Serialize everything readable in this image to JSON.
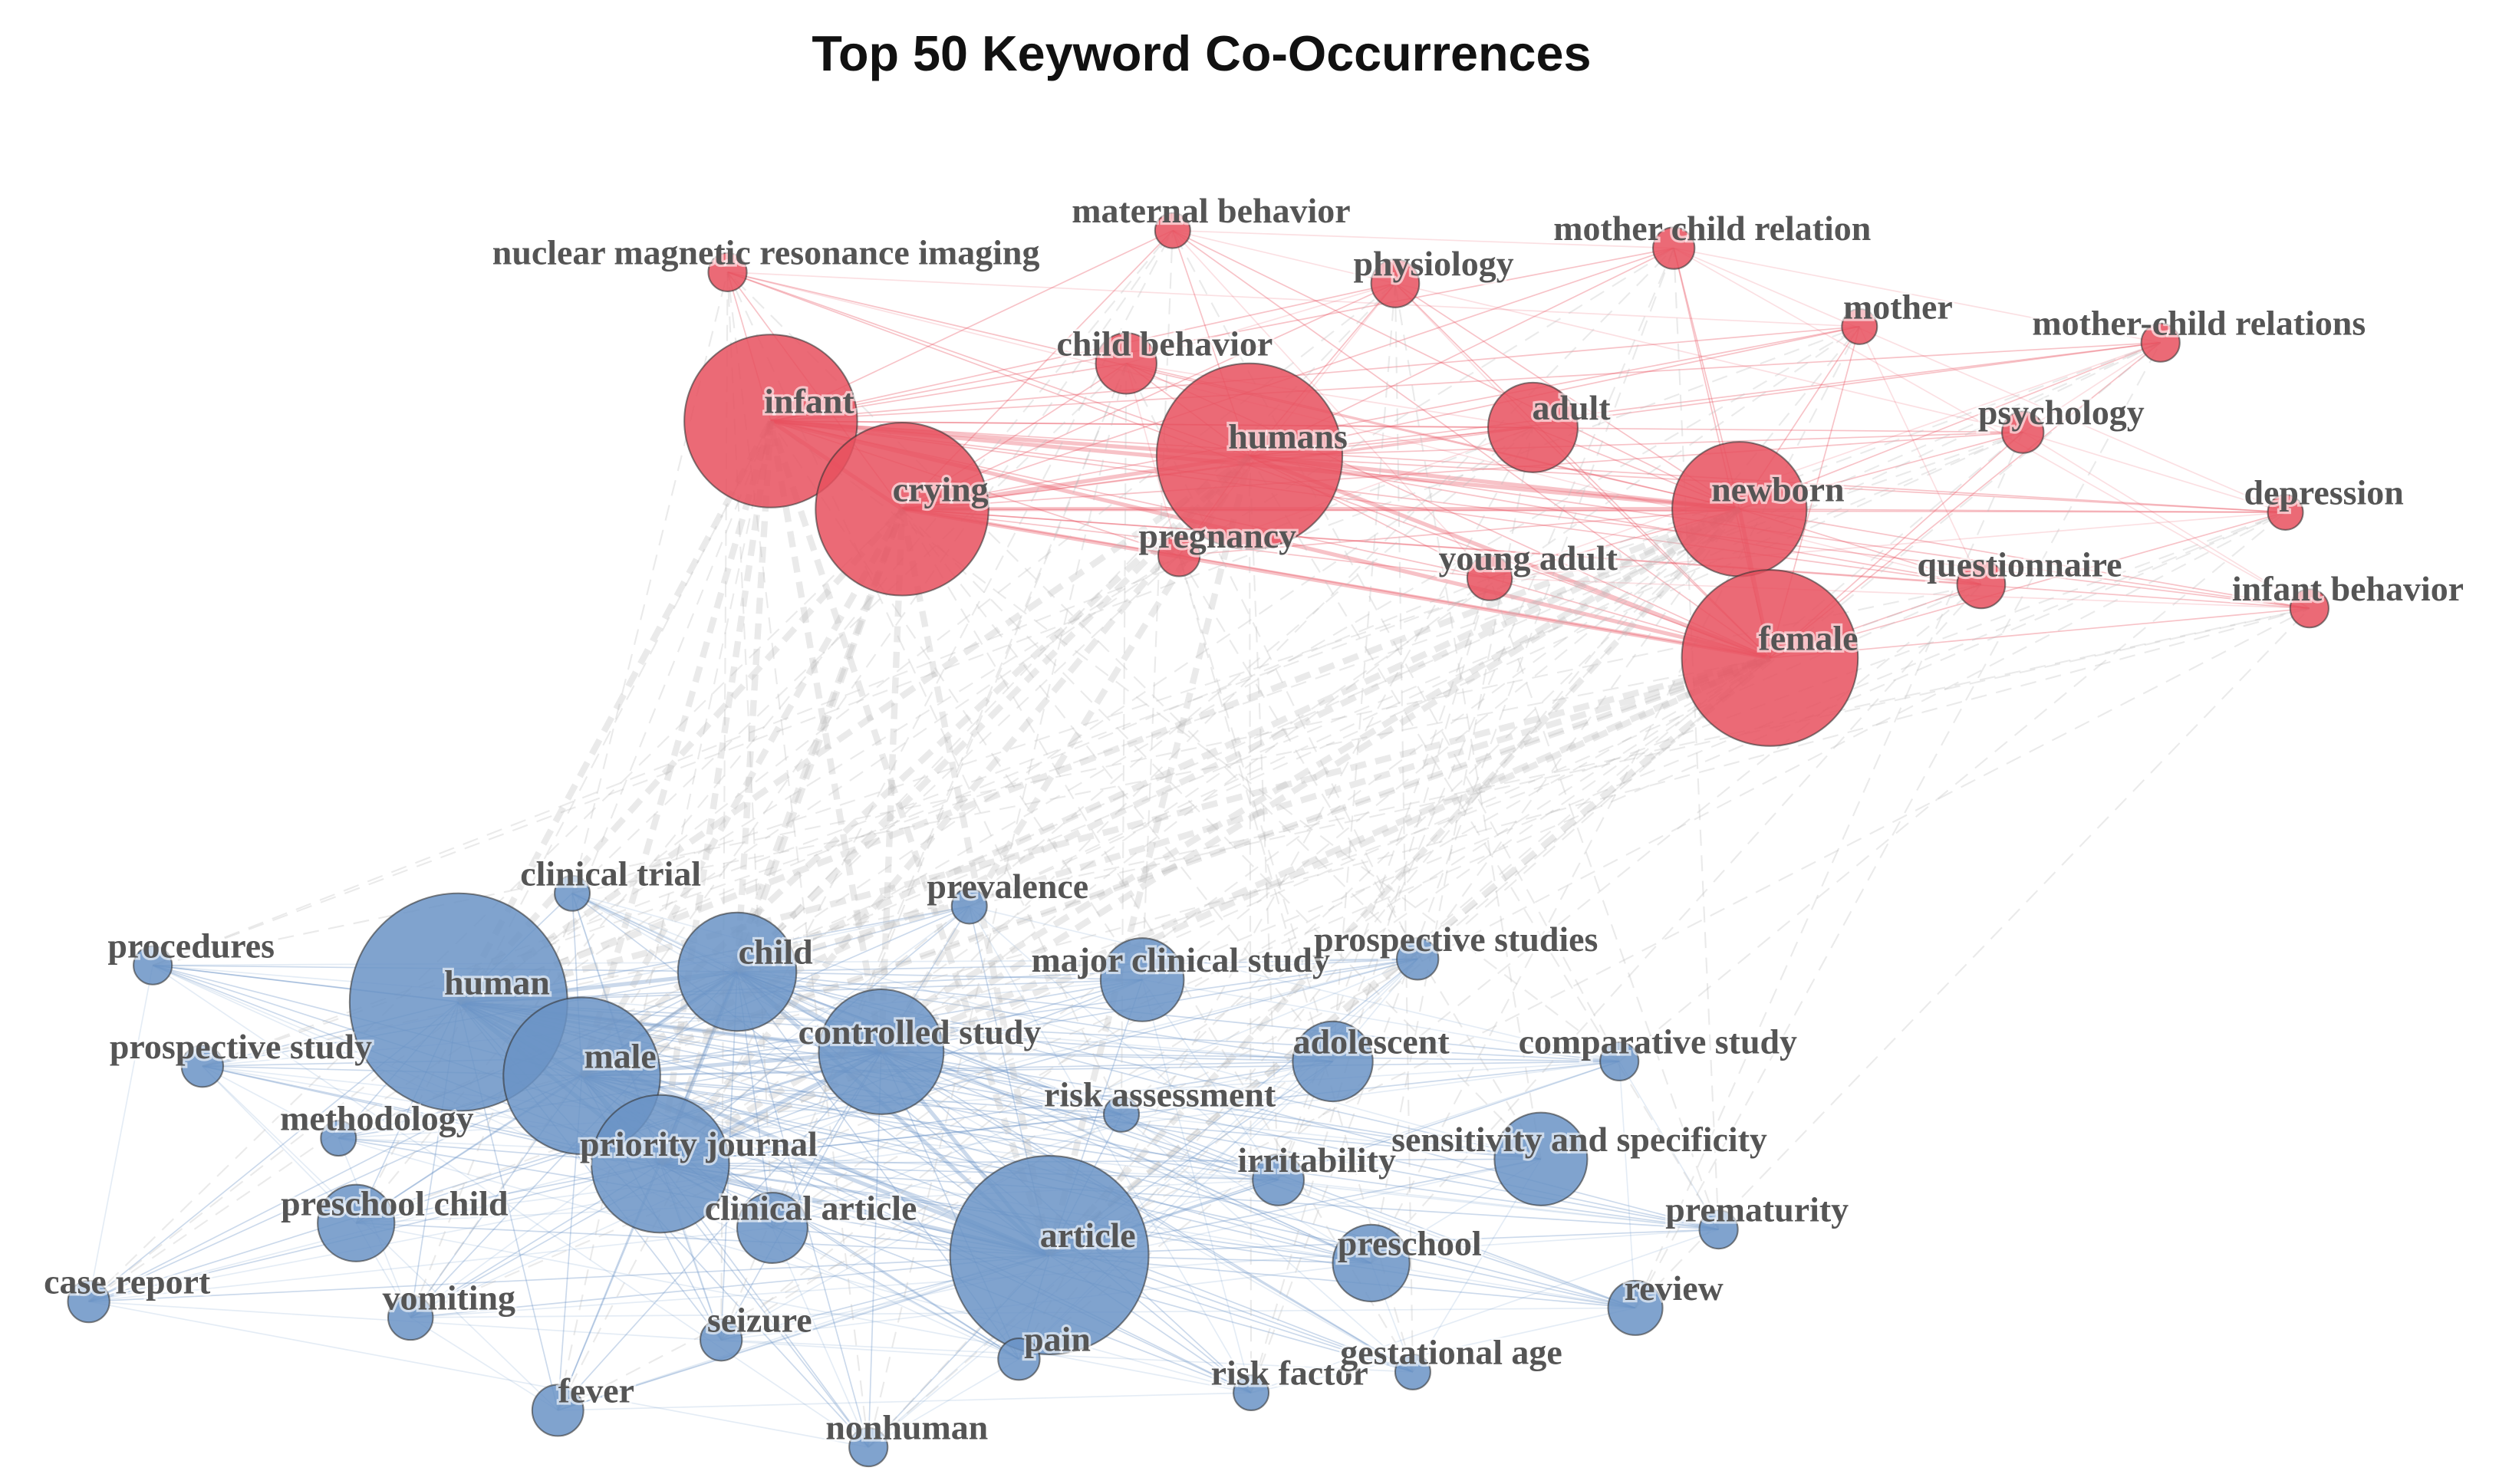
{
  "title": "Top 50 Keyword Co-Occurrences",
  "clusters": [
    {
      "color": "#e8505e",
      "nodes": [
        "nuclear magnetic resonance imaging",
        "maternal behavior",
        "physiology",
        "mother child relation",
        "mother",
        "mother-child relations",
        "child behavior",
        "infant",
        "crying",
        "humans",
        "adult",
        "psychology",
        "newborn",
        "depression",
        "pregnancy",
        "young adult",
        "questionnaire",
        "infant behavior",
        "female"
      ]
    },
    {
      "color": "#6a93c6",
      "nodes": [
        "clinical trial",
        "prevalence",
        "procedures",
        "human",
        "child",
        "major clinical study",
        "prospective studies",
        "prospective study",
        "male",
        "controlled study",
        "adolescent",
        "comparative study",
        "risk assessment",
        "methodology",
        "priority journal",
        "irritability",
        "sensitivity and specificity",
        "preschool child",
        "clinical article",
        "article",
        "preschool",
        "prematurity",
        "case report",
        "vomiting",
        "seizure",
        "review",
        "pain",
        "risk factor",
        "gestational age",
        "fever",
        "nonhuman"
      ]
    }
  ]
}
